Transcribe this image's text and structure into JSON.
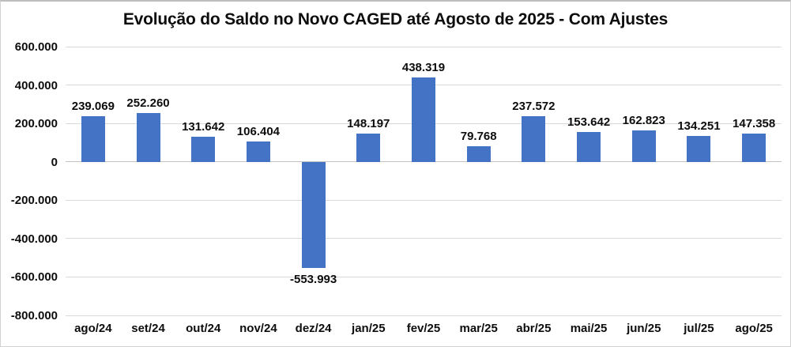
{
  "chart_data": {
    "type": "bar",
    "title": "Evolução do Saldo no Novo CAGED até Agosto de 2025 - Com Ajustes",
    "xlabel": "",
    "ylabel": "",
    "categories": [
      "ago/24",
      "set/24",
      "out/24",
      "nov/24",
      "dez/24",
      "jan/25",
      "fev/25",
      "mar/25",
      "abr/25",
      "mai/25",
      "jun/25",
      "jul/25",
      "ago/25"
    ],
    "values": [
      239069,
      252260,
      131642,
      106404,
      -553993,
      148197,
      438319,
      79768,
      237572,
      153642,
      162823,
      134251,
      147358
    ],
    "data_labels": [
      "239.069",
      "252.260",
      "131.642",
      "106.404",
      "-553.993",
      "148.197",
      "438.319",
      "79.768",
      "237.572",
      "153.642",
      "162.823",
      "134.251",
      "147.358"
    ],
    "y_ticks": [
      600000,
      400000,
      200000,
      0,
      -200000,
      -400000,
      -600000,
      -800000
    ],
    "y_tick_labels": [
      "600.000",
      "400.000",
      "200.000",
      "0",
      "-200.000",
      "-400.000",
      "-600.000",
      "-800.000"
    ],
    "ylim": [
      -800000,
      600000
    ],
    "grid": true,
    "legend": "none",
    "bar_color": "#4472C4",
    "gridline_color": "#D9D9D9",
    "label_color": "#0D0D0D"
  }
}
